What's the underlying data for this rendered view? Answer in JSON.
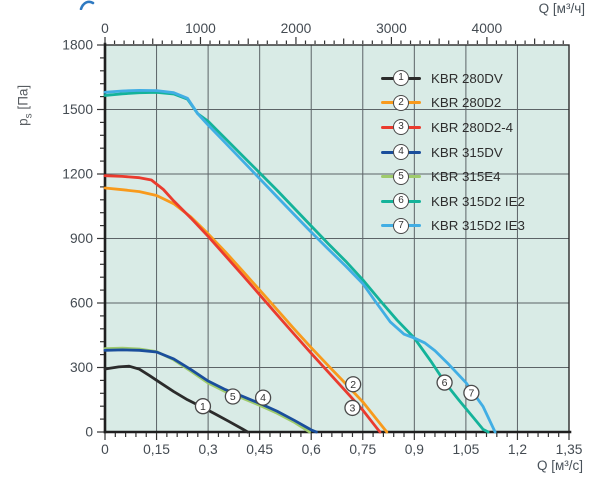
{
  "page": {
    "background": "#ffffff"
  },
  "logo_fragment": {
    "color": "#2E79C1"
  },
  "chart_data": {
    "type": "line",
    "title": "",
    "plot_background": "#D9EBE6",
    "grid_color": "#5C6367",
    "frame_color": "#2B2B2B",
    "axis_color": "#1F1F1F",
    "tick_color": "#333333",
    "label_color": "#444B52",
    "x_bottom": {
      "label": "Q [м³/с]",
      "min": 0,
      "max": 1.35,
      "minor_step": 0.03,
      "major_step": 0.15,
      "tick_labels": [
        "0",
        "0,15",
        "0,3",
        "0,45",
        "0,6",
        "0,75",
        "0,9",
        "1,05",
        "1,2",
        "1,35"
      ]
    },
    "x_top": {
      "label": "Q [м³/ч]",
      "min": 0,
      "max": 4860,
      "minor_step": 100,
      "medium_step": 500,
      "major_step": 1000,
      "tick_labels": [
        "0",
        "1000",
        "2000",
        "3000",
        "4000"
      ]
    },
    "y_left": {
      "label_symbol": "p",
      "label_subscript": "s",
      "label_unit": "[Па]",
      "min": 0,
      "max": 1800,
      "minor_step": 60,
      "major_step": 300,
      "tick_labels": [
        "0",
        "300",
        "600",
        "900",
        "1200",
        "1500",
        "1800"
      ]
    },
    "curve_label_style": {
      "fill": "#FFFFFF",
      "stroke": "#4A4A4A",
      "text": "#333333"
    },
    "draw_order": [
      5,
      4,
      2,
      3,
      6,
      7,
      1
    ],
    "series": [
      {
        "num": 1,
        "name": "KBR 280DV",
        "color": "#2B2B2B",
        "label_at": [
          0.285,
          120
        ],
        "points": [
          [
            0,
            293
          ],
          [
            0.04,
            303
          ],
          [
            0.07,
            306
          ],
          [
            0.1,
            292
          ],
          [
            0.13,
            262
          ],
          [
            0.16,
            230
          ],
          [
            0.2,
            188
          ],
          [
            0.24,
            150
          ],
          [
            0.28,
            118
          ],
          [
            0.32,
            84
          ],
          [
            0.36,
            50
          ],
          [
            0.4,
            14
          ],
          [
            0.415,
            0
          ]
        ]
      },
      {
        "num": 2,
        "name": "KBR 280D2",
        "color": "#F89A1C",
        "label_at": [
          0.722,
          222
        ],
        "points": [
          [
            0,
            1135
          ],
          [
            0.05,
            1127
          ],
          [
            0.1,
            1118
          ],
          [
            0.15,
            1100
          ],
          [
            0.2,
            1062
          ],
          [
            0.25,
            1000
          ],
          [
            0.3,
            922
          ],
          [
            0.35,
            838
          ],
          [
            0.4,
            750
          ],
          [
            0.45,
            660
          ],
          [
            0.5,
            570
          ],
          [
            0.55,
            480
          ],
          [
            0.6,
            392
          ],
          [
            0.65,
            308
          ],
          [
            0.7,
            225
          ],
          [
            0.75,
            140
          ],
          [
            0.79,
            60
          ],
          [
            0.82,
            0
          ]
        ]
      },
      {
        "num": 3,
        "name": "KBR 280D2-4",
        "color": "#EA3B2E",
        "label_at": [
          0.72,
          112
        ],
        "points": [
          [
            0,
            1192
          ],
          [
            0.05,
            1189
          ],
          [
            0.1,
            1183
          ],
          [
            0.135,
            1172
          ],
          [
            0.17,
            1128
          ],
          [
            0.2,
            1075
          ],
          [
            0.25,
            995
          ],
          [
            0.3,
            910
          ],
          [
            0.35,
            820
          ],
          [
            0.4,
            730
          ],
          [
            0.45,
            638
          ],
          [
            0.5,
            546
          ],
          [
            0.55,
            456
          ],
          [
            0.6,
            366
          ],
          [
            0.65,
            278
          ],
          [
            0.7,
            190
          ],
          [
            0.75,
            102
          ],
          [
            0.79,
            20
          ],
          [
            0.8,
            0
          ]
        ]
      },
      {
        "num": 4,
        "name": "KBR 315DV",
        "color": "#1A4E9C",
        "label_at": [
          0.46,
          160
        ],
        "points": [
          [
            0,
            380
          ],
          [
            0.05,
            382
          ],
          [
            0.1,
            380
          ],
          [
            0.15,
            372
          ],
          [
            0.2,
            340
          ],
          [
            0.25,
            290
          ],
          [
            0.3,
            237
          ],
          [
            0.35,
            197
          ],
          [
            0.4,
            166
          ],
          [
            0.45,
            133
          ],
          [
            0.5,
            97
          ],
          [
            0.55,
            55
          ],
          [
            0.6,
            10
          ],
          [
            0.615,
            0
          ]
        ]
      },
      {
        "num": 5,
        "name": "KBR 315E4",
        "color": "#9FCB6C",
        "label_at": [
          0.372,
          165
        ],
        "points": [
          [
            0,
            388
          ],
          [
            0.05,
            390
          ],
          [
            0.1,
            386
          ],
          [
            0.15,
            374
          ],
          [
            0.2,
            336
          ],
          [
            0.25,
            283
          ],
          [
            0.3,
            228
          ],
          [
            0.35,
            188
          ],
          [
            0.4,
            157
          ],
          [
            0.45,
            124
          ],
          [
            0.5,
            88
          ],
          [
            0.55,
            46
          ],
          [
            0.595,
            0
          ]
        ]
      },
      {
        "num": 6,
        "name": "KBR 315D2 IE2",
        "color": "#14B39A",
        "label_at": [
          0.988,
          230
        ],
        "points": [
          [
            0,
            1565
          ],
          [
            0.05,
            1573
          ],
          [
            0.1,
            1578
          ],
          [
            0.15,
            1580
          ],
          [
            0.2,
            1572
          ],
          [
            0.24,
            1548
          ],
          [
            0.27,
            1480
          ],
          [
            0.3,
            1445
          ],
          [
            0.35,
            1365
          ],
          [
            0.4,
            1285
          ],
          [
            0.45,
            1205
          ],
          [
            0.5,
            1125
          ],
          [
            0.55,
            1042
          ],
          [
            0.6,
            958
          ],
          [
            0.65,
            875
          ],
          [
            0.7,
            795
          ],
          [
            0.75,
            708
          ],
          [
            0.8,
            612
          ],
          [
            0.85,
            520
          ],
          [
            0.9,
            437
          ],
          [
            0.95,
            325
          ],
          [
            0.99,
            228
          ],
          [
            1.03,
            148
          ],
          [
            1.07,
            70
          ],
          [
            1.1,
            12
          ],
          [
            1.115,
            0
          ]
        ]
      },
      {
        "num": 7,
        "name": "KBR 315D2 IE3",
        "color": "#41AEE4",
        "label_at": [
          1.066,
          182
        ],
        "points": [
          [
            0,
            1580
          ],
          [
            0.05,
            1586
          ],
          [
            0.1,
            1589
          ],
          [
            0.15,
            1588
          ],
          [
            0.2,
            1578
          ],
          [
            0.24,
            1552
          ],
          [
            0.27,
            1480
          ],
          [
            0.3,
            1428
          ],
          [
            0.35,
            1345
          ],
          [
            0.4,
            1262
          ],
          [
            0.45,
            1178
          ],
          [
            0.5,
            1095
          ],
          [
            0.55,
            1012
          ],
          [
            0.6,
            930
          ],
          [
            0.65,
            850
          ],
          [
            0.7,
            772
          ],
          [
            0.75,
            690
          ],
          [
            0.79,
            600
          ],
          [
            0.83,
            512
          ],
          [
            0.87,
            455
          ],
          [
            0.9,
            437
          ],
          [
            0.93,
            415
          ],
          [
            0.96,
            378
          ],
          [
            1.0,
            315
          ],
          [
            1.05,
            230
          ],
          [
            1.1,
            118
          ],
          [
            1.135,
            0
          ]
        ]
      }
    ]
  }
}
